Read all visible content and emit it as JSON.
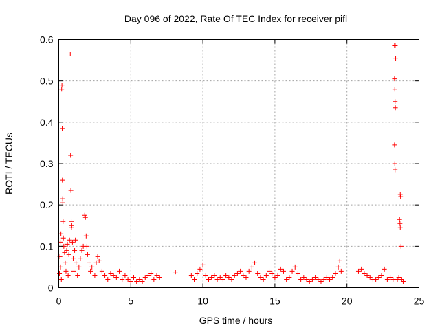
{
  "chart_data": {
    "type": "scatter",
    "title": "Day 096 of 2022, Rate Of TEC Index for receiver pifl",
    "xlabel": "GPS time / hours",
    "ylabel": "ROTI / TECUs",
    "xlim": [
      0,
      25
    ],
    "ylim": [
      0,
      0.6
    ],
    "x_ticks": [
      0,
      5,
      10,
      15,
      20,
      25
    ],
    "x_tick_labels": [
      "0",
      "5",
      "10",
      "15",
      "20",
      "25"
    ],
    "y_ticks": [
      0,
      0.1,
      0.2,
      0.3,
      0.4,
      0.5,
      0.6
    ],
    "y_tick_labels": [
      "0",
      "0.1",
      "0.2",
      "0.3",
      "0.4",
      "0.5",
      "0.6"
    ],
    "grid": true,
    "marker": "plus",
    "color": "#ff0000",
    "series": [
      {
        "points": [
          [
            0.05,
            0.035
          ],
          [
            0.08,
            0.075
          ],
          [
            0.1,
            0.11
          ],
          [
            0.12,
            0.05
          ],
          [
            0.15,
            0.13
          ],
          [
            0.18,
            0.02
          ],
          [
            0.2,
            0.48
          ],
          [
            0.22,
            0.49
          ],
          [
            0.24,
            0.385
          ],
          [
            0.25,
            0.26
          ],
          [
            0.27,
            0.215
          ],
          [
            0.28,
            0.205
          ],
          [
            0.3,
            0.16
          ],
          [
            0.32,
            0.12
          ],
          [
            0.35,
            0.1
          ],
          [
            0.4,
            0.085
          ],
          [
            0.45,
            0.06
          ],
          [
            0.5,
            0.04
          ],
          [
            0.55,
            0.09
          ],
          [
            0.6,
            0.105
          ],
          [
            0.65,
            0.03
          ],
          [
            0.7,
            0.08
          ],
          [
            0.75,
            0.115
          ],
          [
            0.8,
            0.565
          ],
          [
            0.82,
            0.32
          ],
          [
            0.84,
            0.235
          ],
          [
            0.86,
            0.16
          ],
          [
            0.88,
            0.145
          ],
          [
            0.9,
            0.15
          ],
          [
            0.95,
            0.11
          ],
          [
            1.0,
            0.07
          ],
          [
            1.05,
            0.04
          ],
          [
            1.1,
            0.09
          ],
          [
            1.15,
            0.115
          ],
          [
            1.2,
            0.06
          ],
          [
            1.3,
            0.03
          ],
          [
            1.4,
            0.05
          ],
          [
            1.5,
            0.07
          ],
          [
            1.6,
            0.09
          ],
          [
            1.7,
            0.1
          ],
          [
            1.8,
            0.175
          ],
          [
            1.85,
            0.17
          ],
          [
            1.9,
            0.125
          ],
          [
            1.95,
            0.1
          ],
          [
            2.0,
            0.08
          ],
          [
            2.1,
            0.06
          ],
          [
            2.2,
            0.04
          ],
          [
            2.3,
            0.05
          ],
          [
            2.5,
            0.03
          ],
          [
            2.6,
            0.06
          ],
          [
            2.7,
            0.075
          ],
          [
            2.8,
            0.065
          ],
          [
            3.0,
            0.04
          ],
          [
            3.2,
            0.03
          ],
          [
            3.4,
            0.02
          ],
          [
            3.6,
            0.035
          ],
          [
            3.8,
            0.03
          ],
          [
            4.0,
            0.025
          ],
          [
            4.2,
            0.04
          ],
          [
            4.4,
            0.02
          ],
          [
            4.6,
            0.03
          ],
          [
            4.8,
            0.02
          ],
          [
            5.0,
            0.015
          ],
          [
            5.2,
            0.025
          ],
          [
            5.4,
            0.015
          ],
          [
            5.6,
            0.02
          ],
          [
            5.8,
            0.015
          ],
          [
            6.0,
            0.025
          ],
          [
            6.2,
            0.03
          ],
          [
            6.4,
            0.035
          ],
          [
            6.6,
            0.02
          ],
          [
            6.8,
            0.03
          ],
          [
            7.0,
            0.025
          ],
          [
            8.1,
            0.038
          ],
          [
            9.2,
            0.03
          ],
          [
            9.4,
            0.02
          ],
          [
            9.6,
            0.035
          ],
          [
            9.8,
            0.045
          ],
          [
            10.0,
            0.055
          ],
          [
            10.2,
            0.03
          ],
          [
            10.4,
            0.02
          ],
          [
            10.6,
            0.025
          ],
          [
            10.8,
            0.03
          ],
          [
            11.0,
            0.02
          ],
          [
            11.2,
            0.025
          ],
          [
            11.4,
            0.02
          ],
          [
            11.6,
            0.03
          ],
          [
            11.8,
            0.025
          ],
          [
            12.0,
            0.02
          ],
          [
            12.2,
            0.03
          ],
          [
            12.4,
            0.035
          ],
          [
            12.6,
            0.04
          ],
          [
            12.8,
            0.03
          ],
          [
            13.0,
            0.025
          ],
          [
            13.2,
            0.04
          ],
          [
            13.4,
            0.05
          ],
          [
            13.6,
            0.06
          ],
          [
            13.8,
            0.035
          ],
          [
            14.0,
            0.025
          ],
          [
            14.2,
            0.02
          ],
          [
            14.4,
            0.03
          ],
          [
            14.6,
            0.04
          ],
          [
            14.8,
            0.035
          ],
          [
            15.0,
            0.025
          ],
          [
            15.2,
            0.03
          ],
          [
            15.4,
            0.045
          ],
          [
            15.6,
            0.04
          ],
          [
            15.8,
            0.02
          ],
          [
            16.0,
            0.025
          ],
          [
            16.2,
            0.04
          ],
          [
            16.4,
            0.05
          ],
          [
            16.6,
            0.035
          ],
          [
            16.8,
            0.02
          ],
          [
            17.0,
            0.025
          ],
          [
            17.2,
            0.02
          ],
          [
            17.4,
            0.015
          ],
          [
            17.6,
            0.02
          ],
          [
            17.8,
            0.025
          ],
          [
            18.0,
            0.02
          ],
          [
            18.2,
            0.015
          ],
          [
            18.4,
            0.02
          ],
          [
            18.6,
            0.025
          ],
          [
            18.8,
            0.02
          ],
          [
            19.0,
            0.025
          ],
          [
            19.2,
            0.035
          ],
          [
            19.4,
            0.05
          ],
          [
            19.5,
            0.065
          ],
          [
            19.6,
            0.04
          ],
          [
            20.8,
            0.04
          ],
          [
            21.0,
            0.045
          ],
          [
            21.2,
            0.035
          ],
          [
            21.4,
            0.03
          ],
          [
            21.6,
            0.025
          ],
          [
            21.8,
            0.02
          ],
          [
            22.0,
            0.02
          ],
          [
            22.2,
            0.025
          ],
          [
            22.4,
            0.03
          ],
          [
            22.6,
            0.045
          ],
          [
            22.8,
            0.02
          ],
          [
            23.0,
            0.025
          ],
          [
            23.2,
            0.02
          ],
          [
            23.3,
            0.585
          ],
          [
            23.35,
            0.585
          ],
          [
            23.38,
            0.555
          ],
          [
            23.3,
            0.505
          ],
          [
            23.32,
            0.48
          ],
          [
            23.34,
            0.45
          ],
          [
            23.36,
            0.435
          ],
          [
            23.3,
            0.345
          ],
          [
            23.32,
            0.3
          ],
          [
            23.34,
            0.285
          ],
          [
            23.5,
            0.02
          ],
          [
            23.6,
            0.025
          ],
          [
            23.7,
            0.225
          ],
          [
            23.72,
            0.22
          ],
          [
            23.65,
            0.165
          ],
          [
            23.68,
            0.155
          ],
          [
            23.7,
            0.145
          ],
          [
            23.75,
            0.1
          ],
          [
            23.8,
            0.02
          ],
          [
            23.9,
            0.015
          ]
        ]
      }
    ]
  }
}
